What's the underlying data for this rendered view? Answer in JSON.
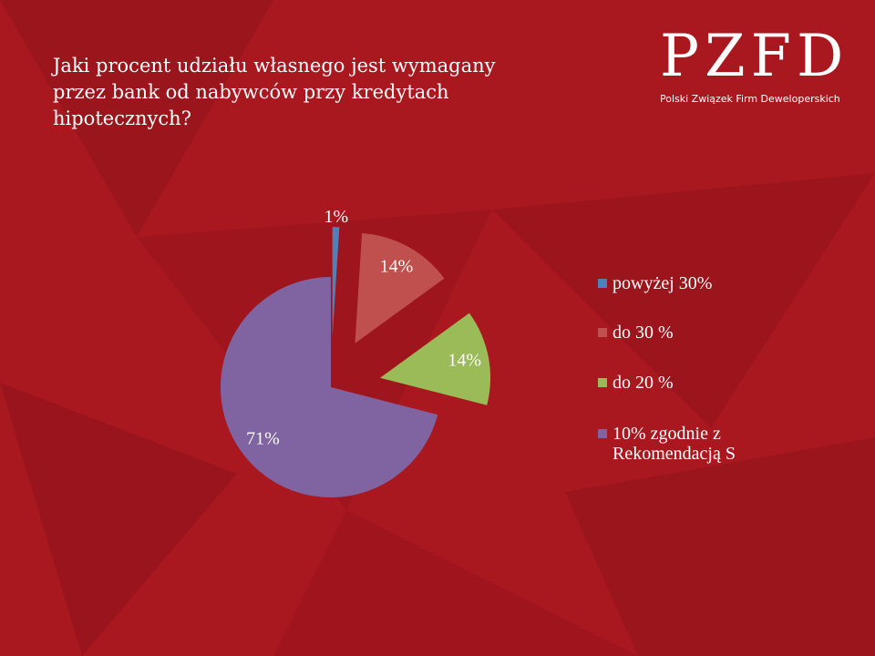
{
  "logo": {
    "name": "PZFD",
    "tagline": "Polski Związek Firm Deweloperskich"
  },
  "chart_data": {
    "type": "pie",
    "title": "Jaki procent udziału własnego jest wymagany przez bank od nabywców przy kredytach hipotecznych?",
    "categories": [
      "powyżej 30%",
      "do 30 %",
      "do 20 %",
      "10% zgodnie z Rekomendacją S"
    ],
    "values": [
      1,
      14,
      14,
      71
    ],
    "value_labels": [
      "1%",
      "14%",
      "14%",
      "71%"
    ],
    "colors": [
      "#4f81bd",
      "#c0504d",
      "#9bbb59",
      "#8064a2"
    ],
    "exploded": [
      true,
      true,
      true,
      false
    ],
    "legend": "right"
  }
}
